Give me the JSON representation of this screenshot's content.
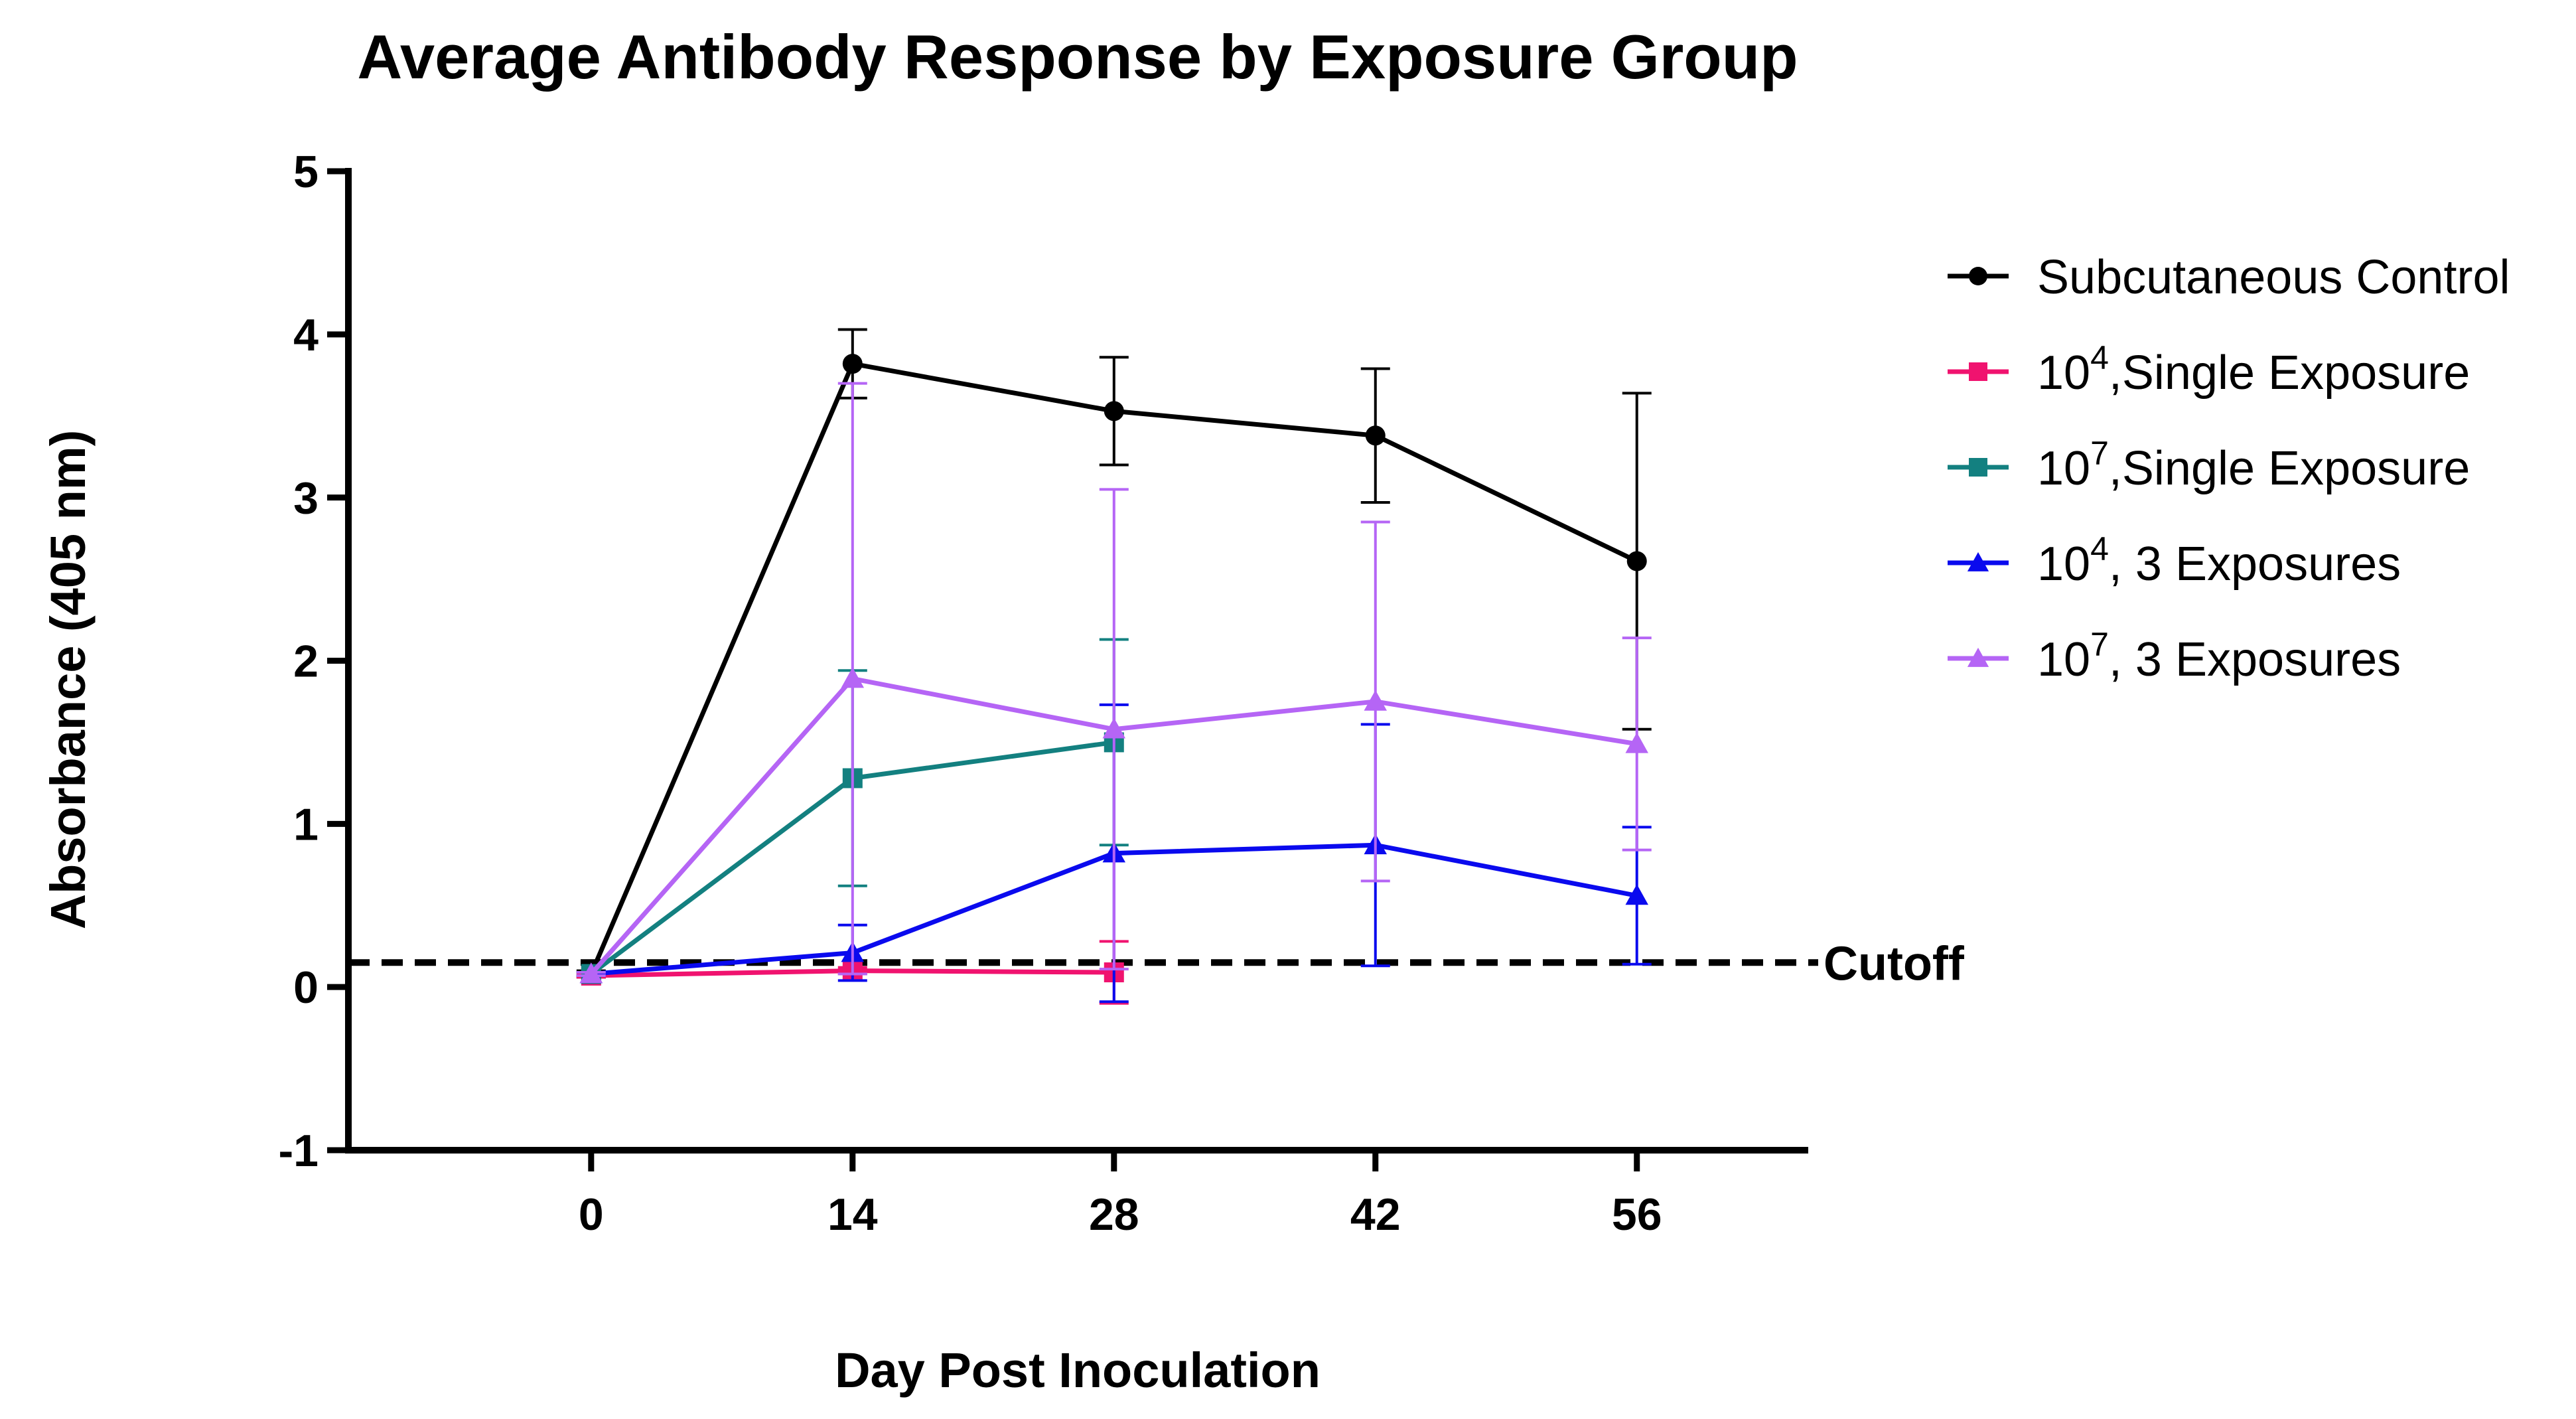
{
  "chart_data": {
    "type": "line",
    "title": "Average Antibody Response by Exposure Group",
    "xlabel": "Day Post Inoculation",
    "ylabel": "Absorbance (405 nm)",
    "xlim": [
      -13,
      65
    ],
    "ylim": [
      -1,
      5
    ],
    "xticks": [
      0,
      14,
      28,
      42,
      56
    ],
    "yticks": [
      -1,
      0,
      1,
      2,
      3,
      4,
      5
    ],
    "legend_position": "right",
    "cutoff": {
      "value": 0.15,
      "label": "Cutoff",
      "color": "#000000"
    },
    "series": [
      {
        "name": "Subcutaneous Control",
        "name_base": "Subcutaneous Control",
        "name_exp": "",
        "name_rest": "",
        "color": "#000000",
        "marker": "circle",
        "x": [
          0,
          14,
          28,
          42,
          56
        ],
        "y": [
          0.08,
          3.82,
          3.53,
          3.38,
          2.61
        ],
        "err": [
          0.02,
          0.21,
          0.33,
          0.41,
          1.03
        ]
      },
      {
        "name": "10^4,Single Exposure",
        "name_base": "10",
        "name_exp": "4",
        "name_rest": ",Single Exposure",
        "color": "#f0136f",
        "marker": "square",
        "x": [
          0,
          14,
          28
        ],
        "y": [
          0.07,
          0.1,
          0.09
        ],
        "err": [
          0.01,
          0.02,
          0.19
        ]
      },
      {
        "name": "10^7,Single Exposure",
        "name_base": "10",
        "name_exp": "7",
        "name_rest": ",Single Exposure",
        "color": "#138080",
        "marker": "square",
        "x": [
          0,
          14,
          28
        ],
        "y": [
          0.08,
          1.28,
          1.5
        ],
        "err": [
          0.01,
          0.66,
          0.63
        ]
      },
      {
        "name": "10^4, 3 Exposures",
        "name_base": "10",
        "name_exp": "4",
        "name_rest": ", 3 Exposures",
        "color": "#0a0aee",
        "marker": "triangle",
        "x": [
          0,
          14,
          28,
          42,
          56
        ],
        "y": [
          0.08,
          0.21,
          0.82,
          0.87,
          0.56
        ],
        "err": [
          0.01,
          0.17,
          0.91,
          0.74,
          0.42
        ]
      },
      {
        "name": "10^7, 3 Exposures",
        "name_base": "10",
        "name_exp": "7",
        "name_rest": ", 3 Exposures",
        "color": "#b565f5",
        "marker": "triangle",
        "x": [
          0,
          14,
          28,
          42,
          56
        ],
        "y": [
          0.08,
          1.89,
          1.58,
          1.75,
          1.49
        ],
        "err": [
          0.01,
          1.81,
          1.47,
          1.1,
          0.65
        ]
      }
    ]
  }
}
